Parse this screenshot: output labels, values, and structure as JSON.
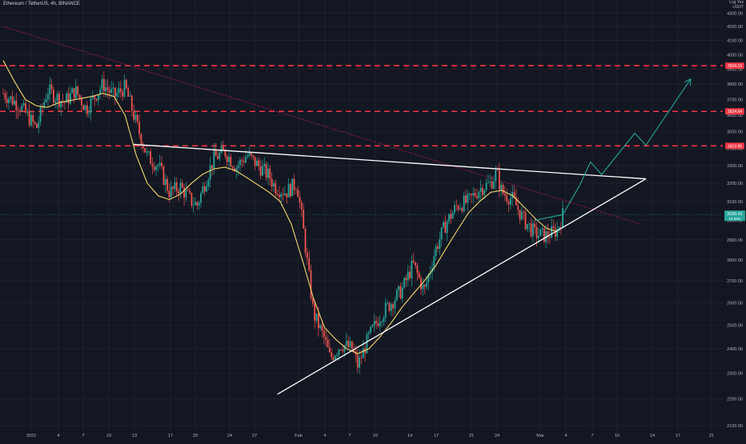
{
  "header": {
    "symbol_text": "Ethereum / TetherUS, 4h, BINANCE",
    "unit_top": "Log Yes",
    "unit": "USDT"
  },
  "colors": {
    "background": "#131722",
    "grid": "#1e222d",
    "up": "#26a69a",
    "down": "#ef5350",
    "ma": "#f5d76e",
    "resistance": "#f23645",
    "trendline": "#ffffff",
    "projection": "#26a69a",
    "dotted": "#c2185b",
    "last_price_bg": "#26a69a"
  },
  "chart_data": {
    "type": "candlestick",
    "title": "Ethereum / TetherUS, 4h, BINANCE",
    "x_ticks": [
      "2022",
      "4",
      "7",
      "10",
      "13",
      "17",
      "20",
      "24",
      "27",
      "Feb",
      "4",
      "7",
      "10",
      "14",
      "17",
      "21",
      "24",
      "Mar",
      "4",
      "7",
      "10",
      "14",
      "17",
      "21"
    ],
    "y_ticks": [
      2100,
      2200,
      2300,
      2400,
      2500,
      2600,
      2700,
      2800,
      2900,
      3000,
      3100,
      3200,
      3300,
      3400,
      3500,
      3600,
      3700,
      3800,
      3900,
      4000,
      4100,
      4200,
      4300
    ],
    "ylim": [
      2080,
      4380
    ],
    "levels": [
      {
        "name": "resistance-high",
        "value": 3924.19,
        "label": "3924.19"
      },
      {
        "name": "resistance-mid",
        "value": 3624.64,
        "label": "3624.64"
      },
      {
        "name": "resistance-low",
        "value": 3413.96,
        "label": "3413.96"
      }
    ],
    "last_price": {
      "value": 3030.41,
      "label": "3030.41",
      "sub": "1h 56m"
    },
    "close_path": [
      [
        0,
        3740
      ],
      [
        3,
        3660
      ],
      [
        6,
        3520
      ],
      [
        8,
        3760
      ],
      [
        11,
        3680
      ],
      [
        13,
        3760
      ],
      [
        15,
        3640
      ],
      [
        18,
        3800
      ],
      [
        20,
        3720
      ],
      [
        22,
        3780
      ],
      [
        24,
        3550
      ],
      [
        26,
        3350
      ],
      [
        28,
        3300
      ],
      [
        30,
        3150
      ],
      [
        32,
        3180
      ],
      [
        34,
        3100
      ],
      [
        35,
        3080
      ],
      [
        38,
        3340
      ],
      [
        40,
        3380
      ],
      [
        42,
        3290
      ],
      [
        44,
        3360
      ],
      [
        46,
        3300
      ],
      [
        48,
        3240
      ],
      [
        49,
        3180
      ],
      [
        51,
        3150
      ],
      [
        53,
        3200
      ],
      [
        54,
        2990
      ],
      [
        55,
        2760
      ],
      [
        56,
        2550
      ],
      [
        58,
        2440
      ],
      [
        59,
        2360
      ],
      [
        61,
        2420
      ],
      [
        63,
        2400
      ],
      [
        64,
        2330
      ],
      [
        66,
        2450
      ],
      [
        68,
        2540
      ],
      [
        70,
        2600
      ],
      [
        72,
        2660
      ],
      [
        74,
        2780
      ],
      [
        76,
        2650
      ],
      [
        78,
        2850
      ],
      [
        80,
        2990
      ],
      [
        82,
        3080
      ],
      [
        84,
        3100
      ],
      [
        86,
        3170
      ],
      [
        88,
        3200
      ],
      [
        89,
        3260
      ],
      [
        90,
        3150
      ],
      [
        92,
        3110
      ],
      [
        94,
        3000
      ],
      [
        96,
        2930
      ],
      [
        98,
        2920
      ],
      [
        100,
        2950
      ],
      [
        101,
        3030
      ]
    ],
    "ma_path": [
      [
        0,
        3960
      ],
      [
        2,
        3820
      ],
      [
        4,
        3700
      ],
      [
        6,
        3660
      ],
      [
        8,
        3650
      ],
      [
        10,
        3680
      ],
      [
        13,
        3700
      ],
      [
        16,
        3720
      ],
      [
        18,
        3740
      ],
      [
        20,
        3720
      ],
      [
        22,
        3600
      ],
      [
        24,
        3360
      ],
      [
        26,
        3200
      ],
      [
        28,
        3130
      ],
      [
        30,
        3110
      ],
      [
        32,
        3140
      ],
      [
        34,
        3200
      ],
      [
        36,
        3250
      ],
      [
        38,
        3280
      ],
      [
        40,
        3290
      ],
      [
        42,
        3270
      ],
      [
        44,
        3230
      ],
      [
        46,
        3190
      ],
      [
        48,
        3150
      ],
      [
        50,
        3100
      ],
      [
        52,
        2980
      ],
      [
        54,
        2800
      ],
      [
        56,
        2620
      ],
      [
        58,
        2490
      ],
      [
        60,
        2440
      ],
      [
        62,
        2400
      ],
      [
        64,
        2380
      ],
      [
        66,
        2400
      ],
      [
        68,
        2450
      ],
      [
        70,
        2510
      ],
      [
        72,
        2580
      ],
      [
        74,
        2640
      ],
      [
        76,
        2700
      ],
      [
        78,
        2770
      ],
      [
        80,
        2860
      ],
      [
        82,
        2950
      ],
      [
        84,
        3040
      ],
      [
        86,
        3100
      ],
      [
        88,
        3150
      ],
      [
        90,
        3160
      ],
      [
        92,
        3130
      ],
      [
        94,
        3070
      ],
      [
        96,
        3010
      ],
      [
        98,
        2960
      ],
      [
        100,
        2940
      ]
    ],
    "trendline_upper": [
      [
        23.5,
        3423
      ],
      [
        116,
        3224
      ]
    ],
    "trendline_lower": [
      [
        49.5,
        2218
      ],
      [
        116,
        3224
      ]
    ],
    "dotted_line": [
      [
        0,
        4200
      ],
      [
        115,
        2980
      ]
    ],
    "projection": [
      [
        96,
        3000
      ],
      [
        101,
        3030
      ],
      [
        104,
        3185
      ],
      [
        106,
        3320
      ],
      [
        108,
        3248
      ],
      [
        114,
        3490
      ],
      [
        116,
        3418
      ],
      [
        124,
        3830
      ]
    ]
  }
}
